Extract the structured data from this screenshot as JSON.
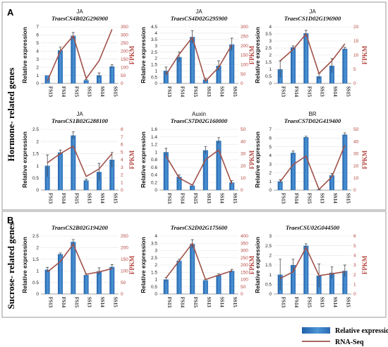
{
  "sections": [
    {
      "letter": "A",
      "group_label": "Hormone- related genes"
    },
    {
      "letter": "B",
      "group_label": "Sucrose- related genes"
    }
  ],
  "axis_labels": {
    "left": "Relative expression",
    "right": "FPKM"
  },
  "legend": {
    "bar": "Relative expression",
    "line": "RNA-Seq"
  },
  "colors": {
    "bar_dark": "#1f5fa8",
    "bar_light": "#4d95d6",
    "line": "#a0524a",
    "right_axis": "#b4463f"
  },
  "chart_data": [
    {
      "type": "bar",
      "hormone": "JA",
      "title": "TraesCS4B02G296900",
      "categories": [
        "FS13",
        "FS14",
        "FS15",
        "SS13",
        "SS14",
        "SS15"
      ],
      "ylim": [
        0,
        7
      ],
      "yticks": [
        0,
        1,
        2,
        3,
        4,
        5,
        6,
        7
      ],
      "y2lim": [
        0,
        350
      ],
      "y2ticks": [
        0,
        50,
        100,
        150,
        200,
        250,
        300,
        350
      ],
      "series": [
        {
          "kind": "bar",
          "axis": "left",
          "values": [
            1.0,
            4.1,
            5.9,
            0.4,
            1.0,
            2.1
          ],
          "error": [
            0.0,
            0.4,
            0.4,
            0.1,
            0.3,
            0.2
          ]
        },
        {
          "kind": "line",
          "axis": "right",
          "values": [
            15,
            200,
            295,
            30,
            140,
            335
          ]
        }
      ]
    },
    {
      "type": "bar",
      "hormone": "JA",
      "title": "TraesCS4D02G295900",
      "categories": [
        "FS13",
        "FS14",
        "FS15",
        "SS13",
        "SS14",
        "SS15"
      ],
      "ylim": [
        0,
        4.5
      ],
      "yticks": [
        0,
        0.5,
        1,
        1.5,
        2,
        2.5,
        3,
        3.5,
        4,
        4.5
      ],
      "y2lim": [
        0,
        300
      ],
      "y2ticks": [
        0,
        50,
        100,
        150,
        200,
        250,
        300
      ],
      "series": [
        {
          "kind": "bar",
          "axis": "left",
          "values": [
            1.0,
            2.1,
            3.7,
            0.3,
            1.4,
            3.1
          ],
          "error": [
            0.3,
            0.4,
            0.5,
            0.1,
            0.4,
            0.5
          ]
        },
        {
          "kind": "line",
          "axis": "right",
          "values": [
            45,
            155,
            245,
            12,
            85,
            205
          ]
        }
      ]
    },
    {
      "type": "bar",
      "hormone": "JA",
      "title": "TraesCS1D02G196900",
      "categories": [
        "FS13",
        "FS14",
        "FS15",
        "SS13",
        "SS14",
        "SS15"
      ],
      "ylim": [
        0,
        4
      ],
      "yticks": [
        0,
        0.5,
        1,
        1.5,
        2,
        2.5,
        3,
        3.5,
        4
      ],
      "y2lim": [
        0,
        20
      ],
      "y2ticks": [
        0,
        5,
        10,
        15,
        20
      ],
      "series": [
        {
          "kind": "bar",
          "axis": "left",
          "values": [
            1.0,
            2.55,
            3.55,
            0.5,
            1.25,
            2.45
          ],
          "error": [
            0.6,
            0.1,
            0.2,
            0.2,
            0.5,
            0.1
          ]
        },
        {
          "kind": "line",
          "axis": "right",
          "values": [
            8,
            12,
            17.5,
            3.5,
            8,
            14
          ]
        }
      ]
    },
    {
      "type": "bar",
      "hormone": "JA",
      "title": "TraesCS1B02G288100",
      "categories": [
        "FS13",
        "FS14",
        "FS15",
        "SS13",
        "SS14",
        "SS15"
      ],
      "ylim": [
        0,
        2.5
      ],
      "yticks": [
        0,
        0.5,
        1,
        1.5,
        2,
        2.5
      ],
      "y2lim": [
        0,
        8
      ],
      "y2ticks": [
        0,
        1,
        2,
        3,
        4,
        5,
        6,
        7,
        8
      ],
      "series": [
        {
          "kind": "bar",
          "axis": "left",
          "values": [
            1.0,
            1.55,
            2.25,
            0.4,
            0.75,
            1.25
          ],
          "error": [
            0.45,
            0.1,
            0.15,
            0.05,
            0.35,
            0.3
          ]
        },
        {
          "kind": "line",
          "axis": "right",
          "values": [
            3.6,
            4.8,
            5.8,
            1.8,
            2.8,
            4.8
          ]
        }
      ]
    },
    {
      "type": "bar",
      "hormone": "Auxin",
      "title": "TraesCS7D02G160000",
      "categories": [
        "FS13",
        "FS14",
        "FS15",
        "SS13",
        "SS14",
        "SS15"
      ],
      "ylim": [
        0,
        1.6
      ],
      "yticks": [
        0,
        0.2,
        0.4,
        0.6,
        0.8,
        1,
        1.2,
        1.4,
        1.6
      ],
      "y2lim": [
        0,
        50
      ],
      "y2ticks": [
        0,
        10,
        20,
        30,
        40,
        50
      ],
      "series": [
        {
          "kind": "bar",
          "axis": "left",
          "values": [
            1.0,
            0.35,
            0.12,
            1.05,
            1.3,
            0.2
          ],
          "error": [
            0.1,
            0.05,
            0.03,
            0.1,
            0.08,
            0.05
          ]
        },
        {
          "kind": "line",
          "axis": "right",
          "values": [
            28,
            10,
            4,
            25,
            33,
            5
          ]
        }
      ]
    },
    {
      "type": "bar",
      "hormone": "BR",
      "title": "TraesCS7D02G419400",
      "categories": [
        "FS13",
        "FS14",
        "FS15",
        "SS13",
        "SS14",
        "SS15"
      ],
      "ylim": [
        0,
        7
      ],
      "yticks": [
        0,
        1,
        2,
        3,
        4,
        5,
        6,
        7
      ],
      "y2lim": [
        0,
        50
      ],
      "y2ticks": [
        0,
        10,
        20,
        30,
        40,
        50
      ],
      "series": [
        {
          "kind": "bar",
          "axis": "left",
          "values": [
            1.0,
            4.3,
            6.1,
            0.05,
            1.7,
            6.4
          ],
          "error": [
            0.2,
            0.2,
            0.1,
            0.02,
            0.2,
            0.2
          ]
        },
        {
          "kind": "line",
          "axis": "right",
          "values": [
            7,
            21,
            28,
            0.5,
            11,
            37
          ]
        }
      ]
    },
    {
      "type": "bar",
      "hormone": "",
      "title": "TraesCS2B02G194200",
      "categories": [
        "FS13",
        "FS14",
        "FS15",
        "SS13",
        "SS14",
        "SS15"
      ],
      "ylim": [
        0,
        2.5
      ],
      "yticks": [
        0,
        0.5,
        1,
        1.5,
        2,
        2.5
      ],
      "y2lim": [
        0,
        250
      ],
      "y2ticks": [
        0,
        50,
        100,
        150,
        200,
        250
      ],
      "series": [
        {
          "kind": "bar",
          "axis": "left",
          "values": [
            1.05,
            1.72,
            2.25,
            0.82,
            0.98,
            1.17
          ],
          "error": [
            0.1,
            0.05,
            0.1,
            0.05,
            0.15,
            0.1
          ]
        },
        {
          "kind": "line",
          "axis": "right",
          "values": [
            95,
            140,
            215,
            85,
            95,
            110
          ]
        }
      ]
    },
    {
      "type": "bar",
      "hormone": "",
      "title": "TraesCS2D02G175600",
      "categories": [
        "FS13",
        "FS14",
        "FS15",
        "SS13",
        "SS14",
        "SS15"
      ],
      "ylim": [
        0,
        4
      ],
      "yticks": [
        0,
        0.5,
        1,
        1.5,
        2,
        2.5,
        3,
        3.5,
        4
      ],
      "y2lim": [
        0,
        400
      ],
      "y2ticks": [
        0,
        50,
        100,
        150,
        200,
        250,
        300,
        350,
        400
      ],
      "series": [
        {
          "kind": "bar",
          "axis": "left",
          "values": [
            1.0,
            2.3,
            3.45,
            0.95,
            1.3,
            1.6
          ],
          "error": [
            0.15,
            0.1,
            0.3,
            0.05,
            0.1,
            0.1
          ]
        },
        {
          "kind": "line",
          "axis": "right",
          "values": [
            110,
            230,
            350,
            100,
            130,
            160
          ]
        }
      ]
    },
    {
      "type": "bar",
      "hormone": "",
      "title": "TraesCSU02G044500",
      "categories": [
        "FS13",
        "FS14",
        "FS15",
        "SS13",
        "SS14",
        "SS15"
      ],
      "ylim": [
        0,
        3
      ],
      "yticks": [
        0,
        0.5,
        1,
        1.5,
        2,
        2.5,
        3
      ],
      "y2lim": [
        0,
        6
      ],
      "y2ticks": [
        0,
        1,
        2,
        3,
        4,
        5,
        6
      ],
      "series": [
        {
          "kind": "bar",
          "axis": "left",
          "values": [
            1.0,
            1.5,
            2.5,
            0.95,
            1.1,
            1.2
          ],
          "error": [
            0.8,
            0.3,
            0.1,
            0.6,
            0.3,
            0.3
          ]
        },
        {
          "kind": "line",
          "axis": "right",
          "values": [
            1.6,
            2.3,
            4.8,
            1.9,
            2.1,
            2.3
          ]
        }
      ]
    }
  ]
}
